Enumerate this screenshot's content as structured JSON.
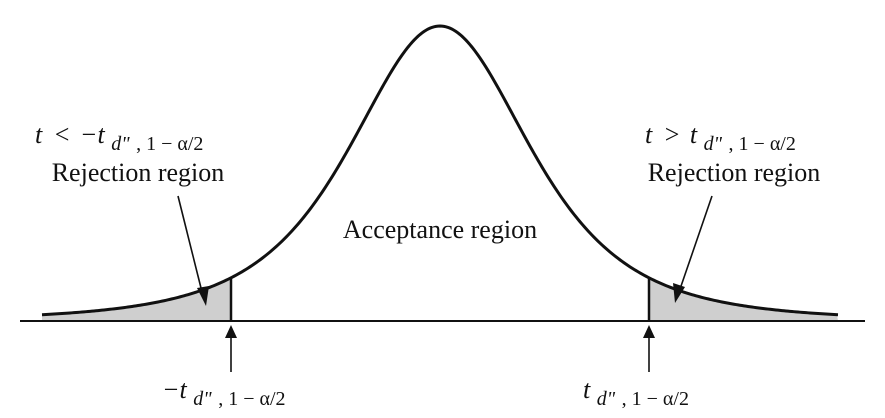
{
  "diagram": {
    "curve_label": "",
    "regions": {
      "acceptance": "Acceptance region",
      "left_rejection": "Rejection region",
      "right_rejection": "Rejection region"
    },
    "conditions": {
      "left": {
        "t": "t",
        "op": "<",
        "neg_t": "−t",
        "sub_main": "d\"",
        "sub_tail": ", 1 − α/2"
      },
      "right": {
        "t": "t",
        "op": ">",
        "t2": "t",
        "sub_main": "d\"",
        "sub_tail": ", 1 − α/2"
      }
    },
    "critical_values": {
      "left": {
        "main": "−t",
        "sub_main": "d\"",
        "sub_tail": ", 1 − α/2"
      },
      "right": {
        "main": "t",
        "sub_main": "d\"",
        "sub_tail": ", 1 − α/2"
      }
    },
    "colors": {
      "ink": "#111111",
      "shade": "#cfcfcf",
      "background": "#ffffff"
    }
  }
}
